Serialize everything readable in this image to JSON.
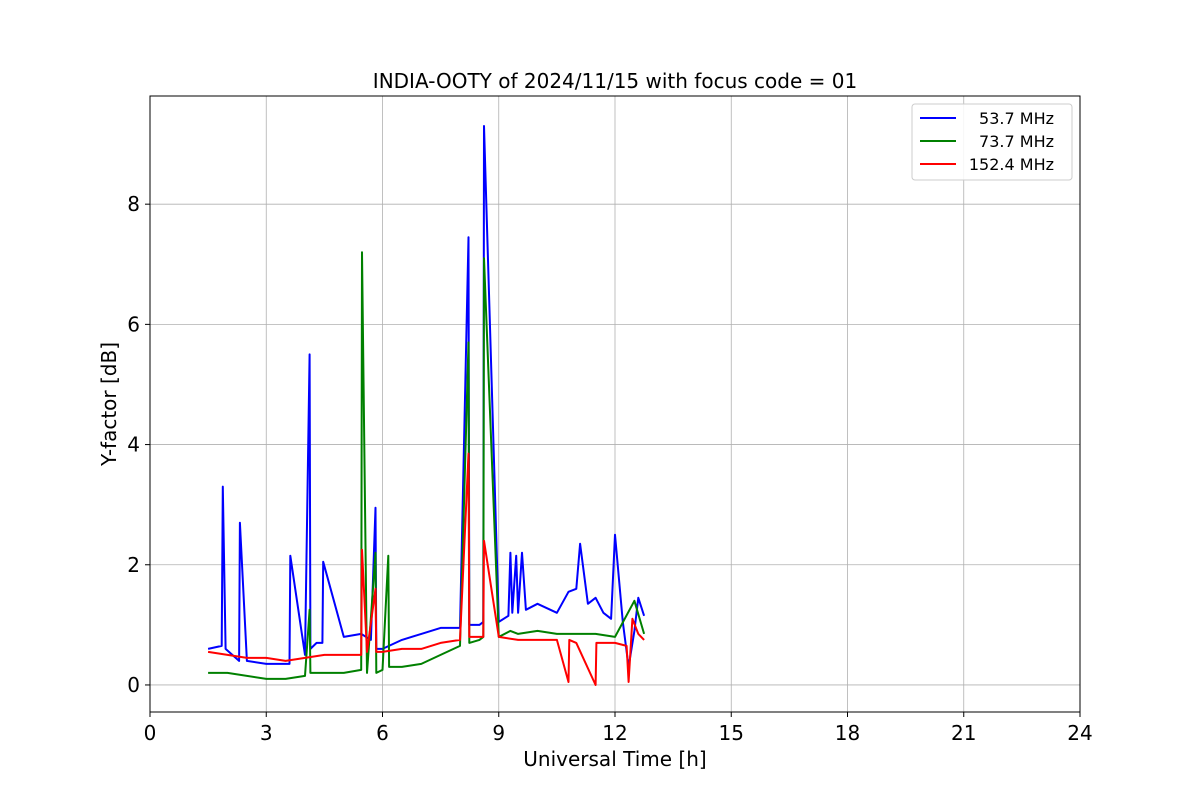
{
  "chart_data": {
    "type": "line",
    "title": "INDIA-OOTY of 2024/11/15 with focus code = 01",
    "xlabel": "Universal Time [h]",
    "ylabel": "Y-factor [dB]",
    "xlim": [
      0,
      24
    ],
    "ylim": [
      -0.45,
      9.8
    ],
    "xticks": [
      0,
      3,
      6,
      9,
      12,
      15,
      18,
      21,
      24
    ],
    "xtick_labels": [
      "0",
      "3",
      "6",
      "9",
      "12",
      "15",
      "18",
      "21",
      "24"
    ],
    "yticks": [
      0,
      2,
      4,
      6,
      8
    ],
    "ytick_labels": [
      "0",
      "2",
      "4",
      "6",
      "8"
    ],
    "grid": true,
    "legend_position": "top-right",
    "series": [
      {
        "name": "53.7 MHz",
        "color": "#0000ff",
        "x": [
          1.5,
          1.85,
          1.88,
          1.95,
          2.3,
          2.32,
          2.5,
          3.0,
          3.6,
          3.62,
          4.0,
          4.12,
          4.14,
          4.3,
          4.45,
          4.47,
          5.0,
          5.45,
          5.7,
          5.82,
          5.84,
          6.0,
          6.5,
          7.0,
          7.5,
          8.0,
          8.22,
          8.24,
          8.5,
          8.6,
          8.62,
          9.0,
          9.25,
          9.3,
          9.35,
          9.45,
          9.5,
          9.6,
          9.7,
          10.0,
          10.5,
          10.8,
          11.0,
          11.1,
          11.3,
          11.5,
          11.7,
          11.9,
          12.0,
          12.2,
          12.35,
          12.5,
          12.6,
          12.75
        ],
        "y": [
          0.6,
          0.65,
          3.3,
          0.6,
          0.4,
          2.7,
          0.4,
          0.35,
          0.35,
          2.15,
          0.5,
          5.5,
          0.6,
          0.7,
          0.7,
          2.05,
          0.8,
          0.85,
          0.75,
          2.95,
          0.6,
          0.6,
          0.75,
          0.85,
          0.95,
          0.95,
          7.45,
          1.0,
          1.0,
          1.05,
          9.3,
          1.05,
          1.15,
          2.2,
          1.2,
          2.15,
          1.2,
          2.2,
          1.25,
          1.35,
          1.2,
          1.55,
          1.6,
          2.35,
          1.35,
          1.45,
          1.2,
          1.1,
          2.5,
          1.05,
          0.3,
          0.9,
          1.45,
          1.15
        ]
      },
      {
        "name": "73.7 MHz",
        "color": "#008000",
        "x": [
          1.5,
          2.0,
          3.0,
          3.5,
          4.0,
          4.12,
          4.14,
          5.0,
          5.45,
          5.47,
          5.6,
          5.82,
          5.84,
          6.0,
          6.15,
          6.17,
          6.5,
          7.0,
          7.5,
          8.0,
          8.22,
          8.24,
          8.5,
          8.6,
          8.62,
          9.0,
          9.3,
          9.5,
          10.0,
          10.5,
          11.0,
          11.5,
          12.0,
          12.5,
          12.75
        ],
        "y": [
          0.2,
          0.2,
          0.1,
          0.1,
          0.15,
          1.25,
          0.2,
          0.2,
          0.25,
          7.2,
          0.2,
          2.2,
          0.2,
          0.25,
          2.15,
          0.3,
          0.3,
          0.35,
          0.5,
          0.65,
          5.7,
          0.7,
          0.75,
          0.8,
          7.1,
          0.8,
          0.9,
          0.85,
          0.9,
          0.85,
          0.85,
          0.85,
          0.8,
          1.4,
          0.85
        ]
      },
      {
        "name": "152.4 MHz",
        "color": "#ff0000",
        "x": [
          1.5,
          2.0,
          2.5,
          3.0,
          3.5,
          4.0,
          4.5,
          5.0,
          5.45,
          5.47,
          5.6,
          5.82,
          5.84,
          6.0,
          6.5,
          7.0,
          7.5,
          8.0,
          8.22,
          8.24,
          8.5,
          8.6,
          8.62,
          9.0,
          9.5,
          10.0,
          10.5,
          10.8,
          10.82,
          11.0,
          11.5,
          11.52,
          11.8,
          12.0,
          12.3,
          12.35,
          12.45,
          12.6,
          12.75
        ],
        "y": [
          0.55,
          0.5,
          0.45,
          0.45,
          0.4,
          0.45,
          0.5,
          0.5,
          0.5,
          2.25,
          0.55,
          1.6,
          0.55,
          0.55,
          0.6,
          0.6,
          0.7,
          0.75,
          3.85,
          0.8,
          0.8,
          0.8,
          2.4,
          0.8,
          0.75,
          0.75,
          0.75,
          0.05,
          0.75,
          0.7,
          0.0,
          0.7,
          0.7,
          0.7,
          0.65,
          0.05,
          1.1,
          0.85,
          0.75
        ]
      }
    ]
  }
}
